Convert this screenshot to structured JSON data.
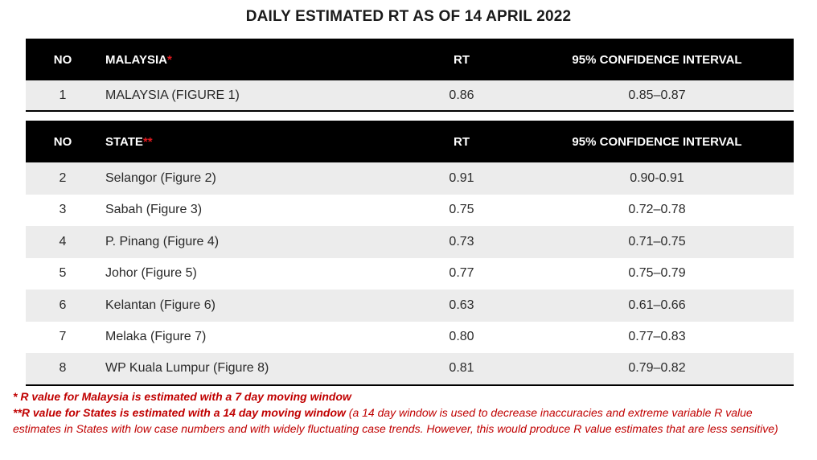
{
  "title": "DAILY ESTIMATED RT AS OF 14 APRIL 2022",
  "malaysia_table": {
    "headers": {
      "no": "NO",
      "name": "MALAYSIA",
      "name_mark": "*",
      "rt": "RT",
      "ci": "95% CONFIDENCE INTERVAL"
    },
    "rows": [
      {
        "no": "1",
        "name": "MALAYSIA (FIGURE 1)",
        "rt": "0.86",
        "ci": "0.85–0.87"
      }
    ]
  },
  "state_table": {
    "headers": {
      "no": "NO",
      "name": "STATE",
      "name_mark": "**",
      "rt": "RT",
      "ci": "95% CONFIDENCE INTERVAL"
    },
    "rows": [
      {
        "no": "2",
        "name": "Selangor (Figure 2)",
        "rt": "0.91",
        "ci": "0.90-0.91"
      },
      {
        "no": "3",
        "name": "Sabah (Figure 3)",
        "rt": "0.75",
        "ci": "0.72–0.78"
      },
      {
        "no": "4",
        "name": "P. Pinang (Figure 4)",
        "rt": "0.73",
        "ci": "0.71–0.75"
      },
      {
        "no": "5",
        "name": "Johor (Figure 5)",
        "rt": "0.77",
        "ci": "0.75–0.79"
      },
      {
        "no": "6",
        "name": "Kelantan (Figure 6)",
        "rt": "0.63",
        "ci": "0.61–0.66"
      },
      {
        "no": "7",
        "name": "Melaka (Figure 7)",
        "rt": "0.80",
        "ci": "0.77–0.83"
      },
      {
        "no": "8",
        "name": "WP Kuala Lumpur (Figure 8)",
        "rt": "0.81",
        "ci": "0.79–0.82"
      }
    ]
  },
  "notes": {
    "note1": "*  R value for Malaysia is estimated with a 7 day moving window",
    "note2_bold": "**R value for States is estimated with a 14 day moving window",
    "note2_rest": " (a 14 day window is used to decrease inaccuracies and extreme variable R value estimates in States with low case numbers and with widely fluctuating case trends. However, this would produce R value estimates that are less sensitive)"
  },
  "colors": {
    "header_bg": "#000000",
    "row_shade": "#ececec",
    "note_red": "#c00000",
    "asterisk_red": "#e0191f"
  }
}
